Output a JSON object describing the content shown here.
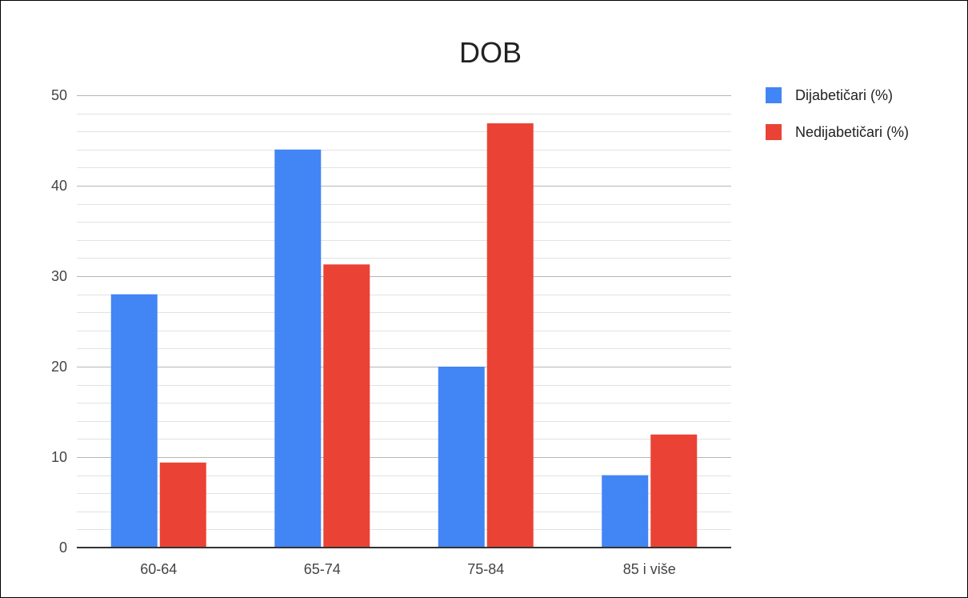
{
  "chart_data": {
    "type": "bar",
    "title": "DOB",
    "categories": [
      "60-64",
      "65-74",
      "75-84",
      "85 i više"
    ],
    "series": [
      {
        "name": "Dijabetičari (%)",
        "color": "#4285f4",
        "values": [
          28,
          44,
          20,
          8
        ]
      },
      {
        "name": "Nedijabetičari (%)",
        "color": "#ea4335",
        "values": [
          9.4,
          31.3,
          46.9,
          12.5
        ]
      }
    ],
    "ylim": [
      0,
      50
    ],
    "yticks": [
      0,
      10,
      20,
      30,
      40,
      50
    ],
    "minor_gridlines_per_major": 5,
    "grid": true,
    "legend_position": "right",
    "xlabel": "",
    "ylabel": ""
  }
}
